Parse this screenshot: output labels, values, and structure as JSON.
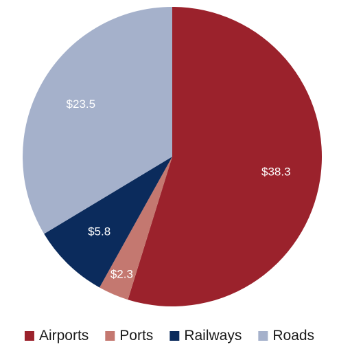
{
  "chart_data": {
    "type": "pie",
    "title": "",
    "slices": [
      {
        "name": "Airports",
        "value": 38.3,
        "label": "$38.3",
        "color": "#9b222c"
      },
      {
        "name": "Ports",
        "value": 2.3,
        "label": "$2.3",
        "color": "#c47870"
      },
      {
        "name": "Railways",
        "value": 5.8,
        "label": "$5.8",
        "color": "#0b2b5c"
      },
      {
        "name": "Roads",
        "value": 23.5,
        "label": "$23.5",
        "color": "#a5b1cb"
      }
    ],
    "start_angle": "12 o'clock",
    "direction": "clockwise",
    "legend_position": "bottom"
  }
}
